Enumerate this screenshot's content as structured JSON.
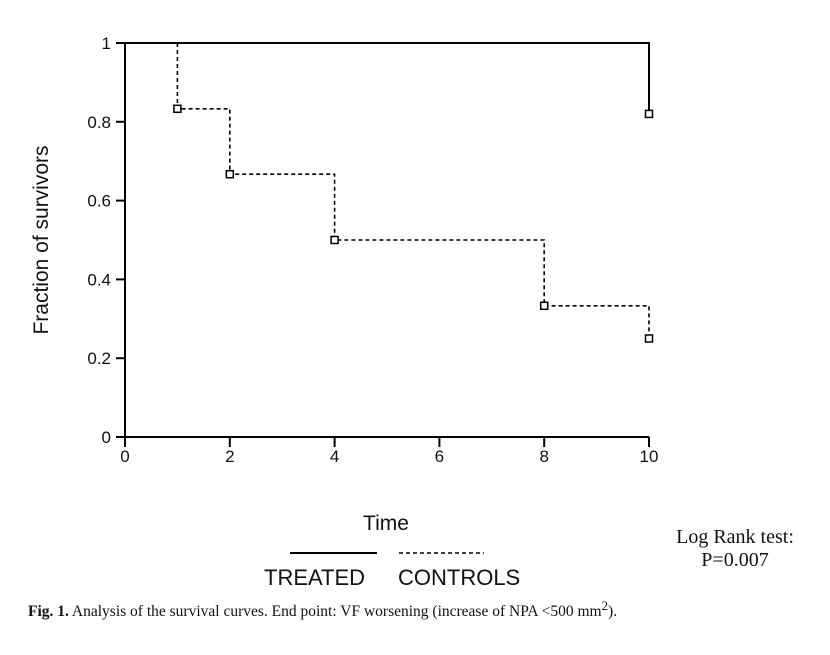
{
  "chart_data": {
    "type": "line",
    "xlabel": "Time",
    "ylabel": "Fraction of survivors",
    "xlim": [
      0,
      10
    ],
    "ylim": [
      0,
      1
    ],
    "x_ticks": [
      {
        "label": "0",
        "value": 0
      },
      {
        "label": "2",
        "value": 2
      },
      {
        "label": "4",
        "value": 4
      },
      {
        "label": "6",
        "value": 6
      },
      {
        "label": "8",
        "value": 8
      },
      {
        "label": "10",
        "value": 10
      }
    ],
    "y_ticks": [
      {
        "label": "0",
        "value": 0
      },
      {
        "label": "0.2",
        "value": 0.2
      },
      {
        "label": "0.4",
        "value": 0.4
      },
      {
        "label": "0.6",
        "value": 0.6
      },
      {
        "label": "0.8",
        "value": 0.8
      },
      {
        "label": "1",
        "value": 1
      }
    ],
    "series": [
      {
        "name": "TREATED",
        "style": "solid",
        "step_x": [
          0,
          10,
          10
        ],
        "step_y": [
          1,
          1,
          0.82
        ],
        "markers": [
          {
            "x": 10,
            "y": 0.82
          }
        ]
      },
      {
        "name": "CONTROLS",
        "style": "dashed",
        "step_x": [
          1,
          1,
          2,
          2,
          4,
          4,
          8,
          8,
          10,
          10
        ],
        "step_y": [
          1,
          0.833,
          0.833,
          0.667,
          0.667,
          0.5,
          0.5,
          0.333,
          0.333,
          0.25
        ],
        "markers": [
          {
            "x": 1,
            "y": 0.833
          },
          {
            "x": 2,
            "y": 0.667
          },
          {
            "x": 4,
            "y": 0.5
          },
          {
            "x": 8,
            "y": 0.333
          },
          {
            "x": 10,
            "y": 0.25
          }
        ]
      }
    ],
    "legend": [
      "TREATED",
      "CONTROLS"
    ],
    "grid": false
  },
  "stats": {
    "line1": "Log Rank test:",
    "line2": "P=0.007"
  },
  "caption": {
    "label": "Fig. 1.",
    "text_before": " Analysis of the survival curves. End point: VF worsening (increase of NPA <500 mm",
    "superscript": "2",
    "text_after": ")."
  }
}
